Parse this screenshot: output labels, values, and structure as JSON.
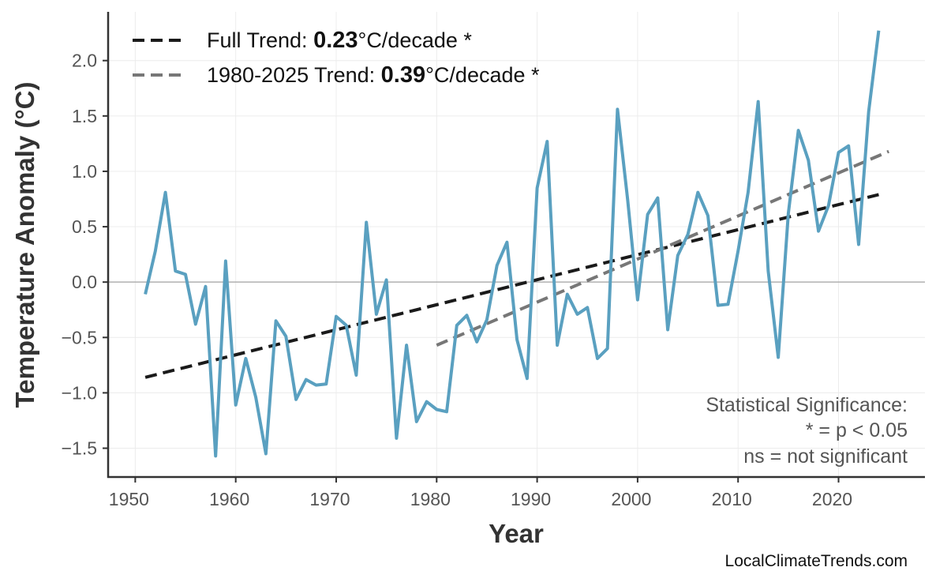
{
  "chart_data": {
    "type": "line",
    "title": "",
    "xlabel": "Year",
    "ylabel": "Temperature Anomaly (°C)",
    "xlim": [
      1947.3,
      2028.6
    ],
    "ylim": [
      -1.76,
      2.44
    ],
    "xticks": [
      1950,
      1960,
      1970,
      1980,
      1990,
      2000,
      2010,
      2020
    ],
    "yticks": [
      -1.5,
      -1.0,
      -0.5,
      0.0,
      0.5,
      1.0,
      1.5,
      2.0
    ],
    "ytick_labels": [
      "−1.5",
      "−1.0",
      "−0.5",
      "0.0",
      "0.5",
      "1.0",
      "1.5",
      "2.0"
    ],
    "grid": true,
    "zero_line": true,
    "x": [
      1951,
      1952,
      1953,
      1954,
      1955,
      1956,
      1957,
      1958,
      1959,
      1960,
      1961,
      1962,
      1963,
      1964,
      1965,
      1966,
      1967,
      1968,
      1969,
      1970,
      1971,
      1972,
      1973,
      1974,
      1975,
      1976,
      1977,
      1978,
      1979,
      1980,
      1981,
      1982,
      1983,
      1984,
      1985,
      1986,
      1987,
      1988,
      1989,
      1990,
      1991,
      1992,
      1993,
      1994,
      1995,
      1996,
      1997,
      1998,
      1999,
      2000,
      2001,
      2002,
      2003,
      2004,
      2005,
      2006,
      2007,
      2008,
      2009,
      2010,
      2011,
      2012,
      2013,
      2014,
      2015,
      2016,
      2017,
      2018,
      2019,
      2020,
      2021,
      2022,
      2023,
      2024
    ],
    "series": [
      {
        "color": "#5aa0c0",
        "values": [
          -0.11,
          0.28,
          0.81,
          0.1,
          0.07,
          -0.38,
          -0.04,
          -1.57,
          0.19,
          -1.11,
          -0.69,
          -1.04,
          -1.55,
          -0.35,
          -0.49,
          -1.06,
          -0.88,
          -0.93,
          -0.92,
          -0.31,
          -0.39,
          -0.84,
          0.54,
          -0.29,
          0.02,
          -1.41,
          -0.57,
          -1.26,
          -1.08,
          -1.15,
          -1.17,
          -0.39,
          -0.3,
          -0.54,
          -0.34,
          0.15,
          0.36,
          -0.52,
          -0.87,
          0.85,
          1.27,
          -0.57,
          -0.11,
          -0.29,
          -0.23,
          -0.69,
          -0.6,
          1.56,
          0.75,
          -0.16,
          0.61,
          0.76,
          -0.43,
          0.24,
          0.43,
          0.81,
          0.6,
          -0.21,
          -0.2,
          0.28,
          0.81,
          1.63,
          0.1,
          -0.68,
          0.62,
          1.37,
          1.1,
          0.46,
          0.69,
          1.17,
          1.23,
          0.34,
          1.54,
          2.27
        ]
      }
    ],
    "trends": [
      {
        "label_prefix": "Full Trend: ",
        "rate": "0.23",
        "label_suffix": "°C/decade *",
        "color": "#1a1a1a",
        "x": [
          1951,
          2024
        ],
        "y": [
          -0.86,
          0.79
        ]
      },
      {
        "label_prefix": "1980-2025 Trend: ",
        "rate": "0.39",
        "label_suffix": "°C/decade *",
        "color": "#777777",
        "x": [
          1980,
          2025
        ],
        "y": [
          -0.57,
          1.18
        ]
      }
    ],
    "legend_placement": "top-left",
    "annotation": [
      "Statistical Significance:",
      "* = p < 0.05",
      "ns = not significant"
    ],
    "watermark": "LocalClimateTrends.com"
  }
}
